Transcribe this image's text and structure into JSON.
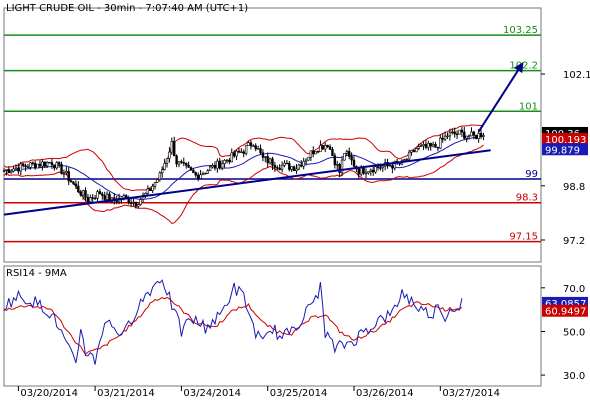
{
  "chart_data": [
    {
      "type": "candlestick",
      "title": "LIGHT CRUDE OIL - 30min - 7:07:40 AM (UTC+1)",
      "ylim": [
        96.55,
        104.05
      ],
      "y_ticks": [
        {
          "value": 102.1,
          "label": "102.1"
        },
        {
          "value": 98.8,
          "label": "98.8"
        },
        {
          "value": 97.2,
          "label": "97.2"
        }
      ],
      "x_ticks": [
        {
          "index": 6,
          "label": "03/20/2014"
        },
        {
          "index": 38,
          "label": "03/21/2014"
        },
        {
          "index": 74,
          "label": "03/24/2014"
        },
        {
          "index": 110,
          "label": "03/25/2014"
        },
        {
          "index": 146,
          "label": "03/26/2014"
        },
        {
          "index": 182,
          "label": "03/27/2014"
        }
      ],
      "levels": [
        {
          "value": 103.25,
          "label": "103.25",
          "color": "#1a8c1a"
        },
        {
          "value": 102.2,
          "label": "102.2",
          "color": "#1a8c1a"
        },
        {
          "value": 101,
          "label": "101",
          "color": "#1a8c1a"
        },
        {
          "value": 99,
          "label": "99",
          "color": "#00008b"
        },
        {
          "value": 98.3,
          "label": "98.3",
          "color": "#cc0000"
        },
        {
          "value": 97.15,
          "label": "97.15",
          "color": "#cc0000"
        }
      ],
      "trendline": {
        "from": {
          "index": 0,
          "value": 97.95
        },
        "to": {
          "index": 203,
          "value": 99.85
        },
        "color": "#00008b"
      },
      "arrow": {
        "from": {
          "index": 198,
          "value": 100.4
        },
        "to": {
          "index": 216,
          "value": 102.38
        },
        "color": "#00008b"
      },
      "price_badges": [
        {
          "value": 100.36,
          "label": "100.36",
          "bg": "#000000",
          "fg": "#ffffff"
        },
        {
          "value": 100.18,
          "label": "100.193",
          "bg": "#cc0000",
          "fg": "#ffffff"
        },
        {
          "value": 99.879,
          "label": "99.879",
          "bg": "#1a1ab4",
          "fg": "#ffffff"
        }
      ],
      "series_path": [
        [
          0,
          99.25
        ],
        [
          10,
          99.4
        ],
        [
          20,
          99.5
        ],
        [
          25,
          99.2
        ],
        [
          30,
          98.75
        ],
        [
          35,
          98.4
        ],
        [
          40,
          98.6
        ],
        [
          45,
          98.35
        ],
        [
          50,
          98.45
        ],
        [
          55,
          98.3
        ],
        [
          60,
          98.6
        ],
        [
          65,
          99.1
        ],
        [
          70,
          100.05
        ],
        [
          72,
          99.5
        ],
        [
          80,
          99.1
        ],
        [
          90,
          99.45
        ],
        [
          100,
          99.85
        ],
        [
          104,
          100.1
        ],
        [
          108,
          99.6
        ],
        [
          115,
          99.4
        ],
        [
          122,
          99.35
        ],
        [
          130,
          99.9
        ],
        [
          135,
          100.05
        ],
        [
          140,
          99.2
        ],
        [
          142,
          99.8
        ],
        [
          148,
          99.25
        ],
        [
          152,
          99.3
        ],
        [
          160,
          99.4
        ],
        [
          166,
          99.45
        ],
        [
          172,
          99.9
        ],
        [
          180,
          99.95
        ],
        [
          185,
          100.3
        ],
        [
          190,
          100.35
        ],
        [
          196,
          100.25
        ],
        [
          200,
          100.36
        ]
      ]
    },
    {
      "type": "line",
      "title": "RSI14 - 9MA",
      "ylim": [
        25,
        80
      ],
      "y_ticks": [
        {
          "value": 70,
          "label": "70.0"
        },
        {
          "value": 50,
          "label": "50.0"
        },
        {
          "value": 30,
          "label": "30.0"
        }
      ],
      "price_badges": [
        {
          "value": 63.0857,
          "label": "63.0857",
          "bg": "#1a1ab4",
          "fg": "#ffffff"
        },
        {
          "value": 59.5,
          "label": "60.9497",
          "bg": "#cc0000",
          "fg": "#ffffff"
        }
      ],
      "rsi_path": [
        [
          0,
          62
        ],
        [
          6,
          66
        ],
        [
          12,
          64
        ],
        [
          18,
          60
        ],
        [
          22,
          54
        ],
        [
          26,
          44
        ],
        [
          30,
          34
        ],
        [
          32,
          52
        ],
        [
          34,
          41
        ],
        [
          38,
          37
        ],
        [
          42,
          55
        ],
        [
          46,
          52
        ],
        [
          50,
          48
        ],
        [
          55,
          60
        ],
        [
          60,
          68
        ],
        [
          66,
          75
        ],
        [
          70,
          62
        ],
        [
          74,
          50
        ],
        [
          78,
          56
        ],
        [
          84,
          52
        ],
        [
          90,
          57
        ],
        [
          96,
          70
        ],
        [
          100,
          66
        ],
        [
          104,
          52
        ],
        [
          108,
          44
        ],
        [
          112,
          52
        ],
        [
          116,
          46
        ],
        [
          120,
          52
        ],
        [
          124,
          55
        ],
        [
          128,
          62
        ],
        [
          132,
          70
        ],
        [
          134,
          50
        ],
        [
          138,
          42
        ],
        [
          146,
          46
        ],
        [
          150,
          50
        ],
        [
          156,
          55
        ],
        [
          162,
          58
        ],
        [
          166,
          68
        ],
        [
          170,
          64
        ],
        [
          174,
          60
        ],
        [
          178,
          58
        ],
        [
          182,
          62
        ],
        [
          184,
          56
        ],
        [
          186,
          60
        ],
        [
          191,
          63.1
        ]
      ],
      "ma_path": [
        [
          0,
          60
        ],
        [
          10,
          62
        ],
        [
          20,
          60
        ],
        [
          28,
          48
        ],
        [
          34,
          40
        ],
        [
          40,
          42
        ],
        [
          48,
          48
        ],
        [
          56,
          56
        ],
        [
          62,
          64
        ],
        [
          68,
          66
        ],
        [
          74,
          60
        ],
        [
          80,
          54
        ],
        [
          88,
          52
        ],
        [
          96,
          60
        ],
        [
          102,
          62
        ],
        [
          108,
          54
        ],
        [
          114,
          50
        ],
        [
          120,
          49
        ],
        [
          128,
          56
        ],
        [
          134,
          58
        ],
        [
          140,
          50
        ],
        [
          146,
          46
        ],
        [
          154,
          50
        ],
        [
          160,
          54
        ],
        [
          166,
          60
        ],
        [
          172,
          63
        ],
        [
          178,
          62
        ],
        [
          184,
          60
        ],
        [
          191,
          61
        ]
      ]
    }
  ]
}
